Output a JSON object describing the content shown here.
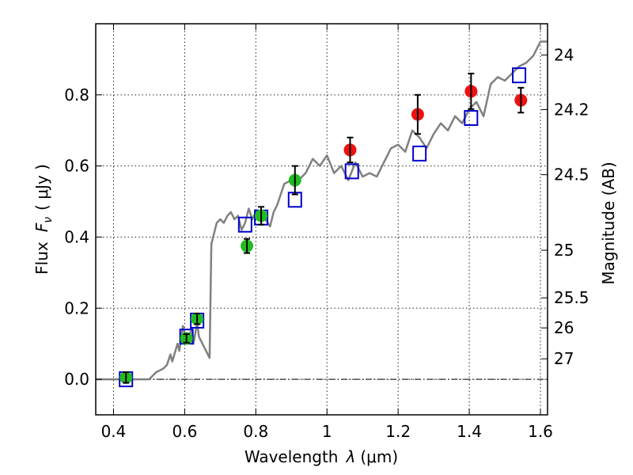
{
  "chart_data": {
    "type": "scatter",
    "xlabel_prefix": "Wavelength",
    "xlabel_symbol": "λ",
    "xlabel_unit": "(μm)",
    "ylabel_prefix": "Flux",
    "ylabel_symbol": "F",
    "ylabel_subscript": "ν",
    "ylabel_unit": "( μJy )",
    "y2label": "Magnitude (AB)",
    "xlim": [
      0.35,
      1.62
    ],
    "ylim": [
      -0.1,
      1.0
    ],
    "x_ticks": [
      0.4,
      0.6,
      0.8,
      1.0,
      1.2,
      1.4,
      1.6
    ],
    "x_tick_labels": [
      "0.4",
      "0.6",
      "0.8",
      "1",
      "1.2",
      "1.4",
      "1.6"
    ],
    "y_ticks": [
      0.0,
      0.2,
      0.4,
      0.6,
      0.8
    ],
    "y_tick_labels": [
      "0.0",
      "0.2",
      "0.4",
      "0.6",
      "0.8"
    ],
    "magnitude_ticks": [
      "24",
      "24.2",
      "24.5",
      "25",
      "25.5",
      "26",
      "27"
    ],
    "grid": true,
    "zero_line": true,
    "colors": {
      "template": "#808080",
      "model_points": "#0000cc",
      "optical_points": "#22bb22",
      "nir_points": "#ee1111",
      "errorbar": "#000000"
    },
    "template_spectrum": {
      "x": [
        0.35,
        0.4,
        0.47,
        0.5,
        0.52,
        0.54,
        0.55,
        0.56,
        0.565,
        0.58,
        0.585,
        0.595,
        0.6,
        0.61,
        0.62,
        0.625,
        0.635,
        0.64,
        0.645,
        0.655,
        0.66,
        0.665,
        0.67,
        0.675,
        0.68,
        0.685,
        0.69,
        0.7,
        0.71,
        0.72,
        0.73,
        0.74,
        0.75,
        0.76,
        0.77,
        0.78,
        0.79,
        0.8,
        0.82,
        0.84,
        0.85,
        0.86,
        0.88,
        0.9,
        0.92,
        0.94,
        0.96,
        0.98,
        1.0,
        1.02,
        1.04,
        1.06,
        1.08,
        1.1,
        1.12,
        1.14,
        1.16,
        1.18,
        1.2,
        1.22,
        1.24,
        1.26,
        1.28,
        1.3,
        1.32,
        1.34,
        1.36,
        1.38,
        1.4,
        1.42,
        1.44,
        1.46,
        1.48,
        1.5,
        1.52,
        1.54,
        1.56,
        1.58,
        1.6,
        1.62
      ],
      "y": [
        0.0,
        0.0,
        0.0,
        0.0,
        0.02,
        0.03,
        0.04,
        0.07,
        0.05,
        0.1,
        0.08,
        0.15,
        0.13,
        0.12,
        0.14,
        0.1,
        0.16,
        0.12,
        0.11,
        0.09,
        0.08,
        0.07,
        0.06,
        0.38,
        0.4,
        0.42,
        0.44,
        0.45,
        0.44,
        0.46,
        0.47,
        0.45,
        0.46,
        0.42,
        0.44,
        0.48,
        0.45,
        0.47,
        0.46,
        0.43,
        0.47,
        0.49,
        0.55,
        0.56,
        0.56,
        0.58,
        0.62,
        0.6,
        0.63,
        0.58,
        0.6,
        0.56,
        0.61,
        0.57,
        0.58,
        0.57,
        0.61,
        0.65,
        0.66,
        0.64,
        0.7,
        0.68,
        0.65,
        0.69,
        0.72,
        0.7,
        0.74,
        0.72,
        0.76,
        0.78,
        0.74,
        0.83,
        0.85,
        0.84,
        0.86,
        0.88,
        0.89,
        0.91,
        0.95,
        0.95
      ]
    },
    "model_points": [
      {
        "x": 0.435,
        "y": 0.0
      },
      {
        "x": 0.605,
        "y": 0.12
      },
      {
        "x": 0.635,
        "y": 0.165
      },
      {
        "x": 0.77,
        "y": 0.435
      },
      {
        "x": 0.815,
        "y": 0.455
      },
      {
        "x": 0.91,
        "y": 0.505
      },
      {
        "x": 1.07,
        "y": 0.585
      },
      {
        "x": 1.26,
        "y": 0.635
      },
      {
        "x": 1.405,
        "y": 0.735
      },
      {
        "x": 1.54,
        "y": 0.855
      }
    ],
    "optical_points": [
      {
        "x": 0.435,
        "y": 0.005,
        "err": 0.015
      },
      {
        "x": 0.605,
        "y": 0.115,
        "err": 0.012
      },
      {
        "x": 0.635,
        "y": 0.17,
        "err": 0.015
      },
      {
        "x": 0.775,
        "y": 0.375,
        "err": 0.02
      },
      {
        "x": 0.815,
        "y": 0.46,
        "err": 0.025
      },
      {
        "x": 0.91,
        "y": 0.56,
        "err": 0.04
      }
    ],
    "nir_points": [
      {
        "x": 1.065,
        "y": 0.645,
        "err": 0.035
      },
      {
        "x": 1.255,
        "y": 0.745,
        "err": 0.055
      },
      {
        "x": 1.405,
        "y": 0.81,
        "err": 0.05
      },
      {
        "x": 1.545,
        "y": 0.785,
        "err": 0.035
      }
    ]
  }
}
